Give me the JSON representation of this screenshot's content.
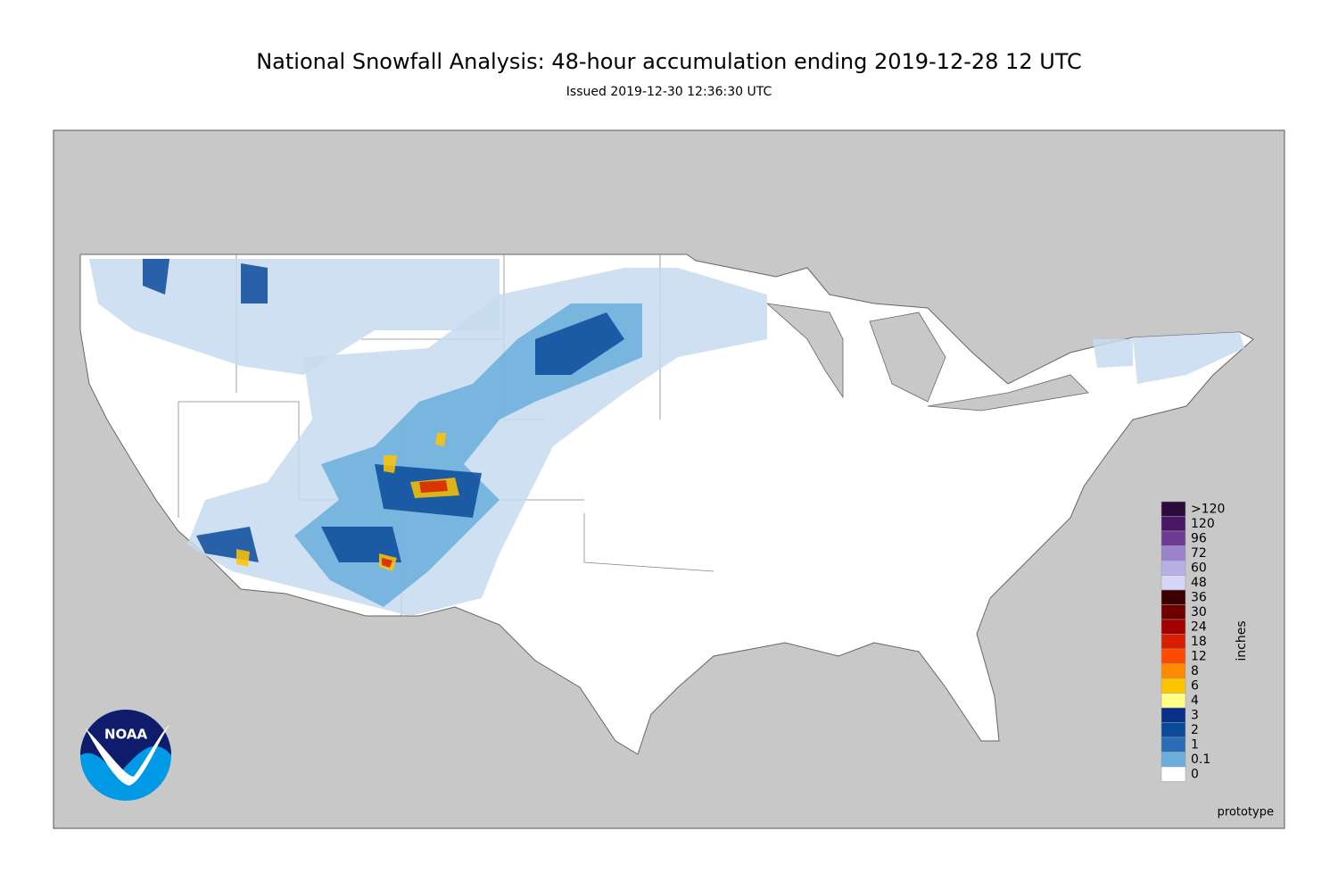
{
  "header": {
    "title": "National Snowfall Analysis: 48-hour accumulation ending 2019-12-28 12 UTC",
    "subtitle": "Issued 2019-12-30 12:36:30 UTC"
  },
  "legend": {
    "unit": "inches",
    "items": [
      {
        "label": ">120",
        "color": "#2b0b3b"
      },
      {
        "label": "120",
        "color": "#4a1666"
      },
      {
        "label": "96",
        "color": "#6c3c94"
      },
      {
        "label": "72",
        "color": "#9a82cc"
      },
      {
        "label": "60",
        "color": "#b8b0e4"
      },
      {
        "label": "48",
        "color": "#d6d6f8"
      },
      {
        "label": "36",
        "color": "#3c0000"
      },
      {
        "label": "30",
        "color": "#6e0000"
      },
      {
        "label": "24",
        "color": "#a30000"
      },
      {
        "label": "18",
        "color": "#d81e00"
      },
      {
        "label": "12",
        "color": "#ff4a00"
      },
      {
        "label": "8",
        "color": "#ff8c00"
      },
      {
        "label": "6",
        "color": "#ffc400"
      },
      {
        "label": "4",
        "color": "#ffff88"
      },
      {
        "label": "3",
        "color": "#08308a"
      },
      {
        "label": "2",
        "color": "#0a4a9a"
      },
      {
        "label": "1",
        "color": "#2a6db6"
      },
      {
        "label": "0.1",
        "color": "#6aaedc"
      },
      {
        "label": "0",
        "color": "#ffffff"
      }
    ]
  },
  "note": "prototype",
  "logo": "NOAA"
}
